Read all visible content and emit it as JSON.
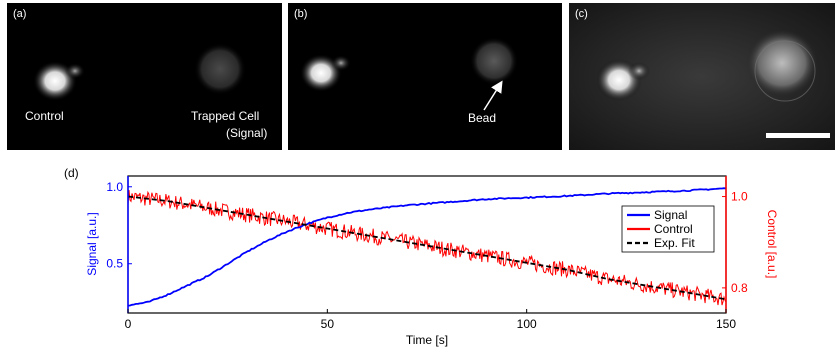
{
  "panels": [
    {
      "label": "(a)",
      "annotations": [
        "Control",
        "Trapped Cell",
        "(Signal)"
      ]
    },
    {
      "label": "(b)",
      "annotations": [
        "Bead"
      ]
    },
    {
      "label": "(c)",
      "annotations": []
    }
  ],
  "chart_data": {
    "type": "line",
    "panel_label": "(d)",
    "xlabel": "Time [s]",
    "ylabel_left": "Signal [a.u.]",
    "ylabel_right": "Control [a.u.]",
    "xlim": [
      0,
      150
    ],
    "ylim_left": [
      0.18,
      1.07
    ],
    "ylim_right": [
      0.745,
      1.045
    ],
    "xticks": [
      "0",
      "50",
      "100",
      "150"
    ],
    "xtick_values": [
      0,
      50,
      100,
      150
    ],
    "yticks_left": [
      "0.5",
      "1.0"
    ],
    "yticks_left_values": [
      0.5,
      1.0
    ],
    "yticks_right": [
      "0.8",
      "1.0"
    ],
    "yticks_right_values": [
      0.8,
      1.0
    ],
    "legend_position": "top-right",
    "grid": false,
    "series": [
      {
        "name": "Signal",
        "color": "#0000ff",
        "axis": "left",
        "x": [
          0,
          5,
          10,
          15,
          20,
          25,
          30,
          35,
          40,
          45,
          50,
          55,
          60,
          70,
          80,
          90,
          100,
          110,
          120,
          130,
          140,
          150
        ],
        "y": [
          0.23,
          0.25,
          0.3,
          0.36,
          0.42,
          0.5,
          0.58,
          0.65,
          0.71,
          0.76,
          0.8,
          0.83,
          0.85,
          0.88,
          0.9,
          0.92,
          0.93,
          0.94,
          0.955,
          0.965,
          0.975,
          0.99
        ]
      },
      {
        "name": "Control",
        "color": "#ff0000",
        "axis": "right",
        "x": [
          0,
          10,
          20,
          30,
          40,
          50,
          60,
          70,
          80,
          90,
          100,
          110,
          120,
          130,
          140,
          150
        ],
        "y": [
          1.0,
          0.99,
          0.975,
          0.96,
          0.945,
          0.93,
          0.915,
          0.9,
          0.885,
          0.87,
          0.855,
          0.84,
          0.82,
          0.805,
          0.79,
          0.775
        ]
      },
      {
        "name": "Exp. Fit",
        "color": "#000000",
        "axis": "right",
        "dashed": true,
        "x": [
          0,
          10,
          20,
          30,
          40,
          50,
          60,
          70,
          80,
          90,
          100,
          110,
          120,
          130,
          140,
          150
        ],
        "y": [
          1.0,
          0.99,
          0.975,
          0.96,
          0.945,
          0.93,
          0.915,
          0.9,
          0.885,
          0.87,
          0.855,
          0.84,
          0.82,
          0.805,
          0.79,
          0.775
        ]
      }
    ]
  }
}
